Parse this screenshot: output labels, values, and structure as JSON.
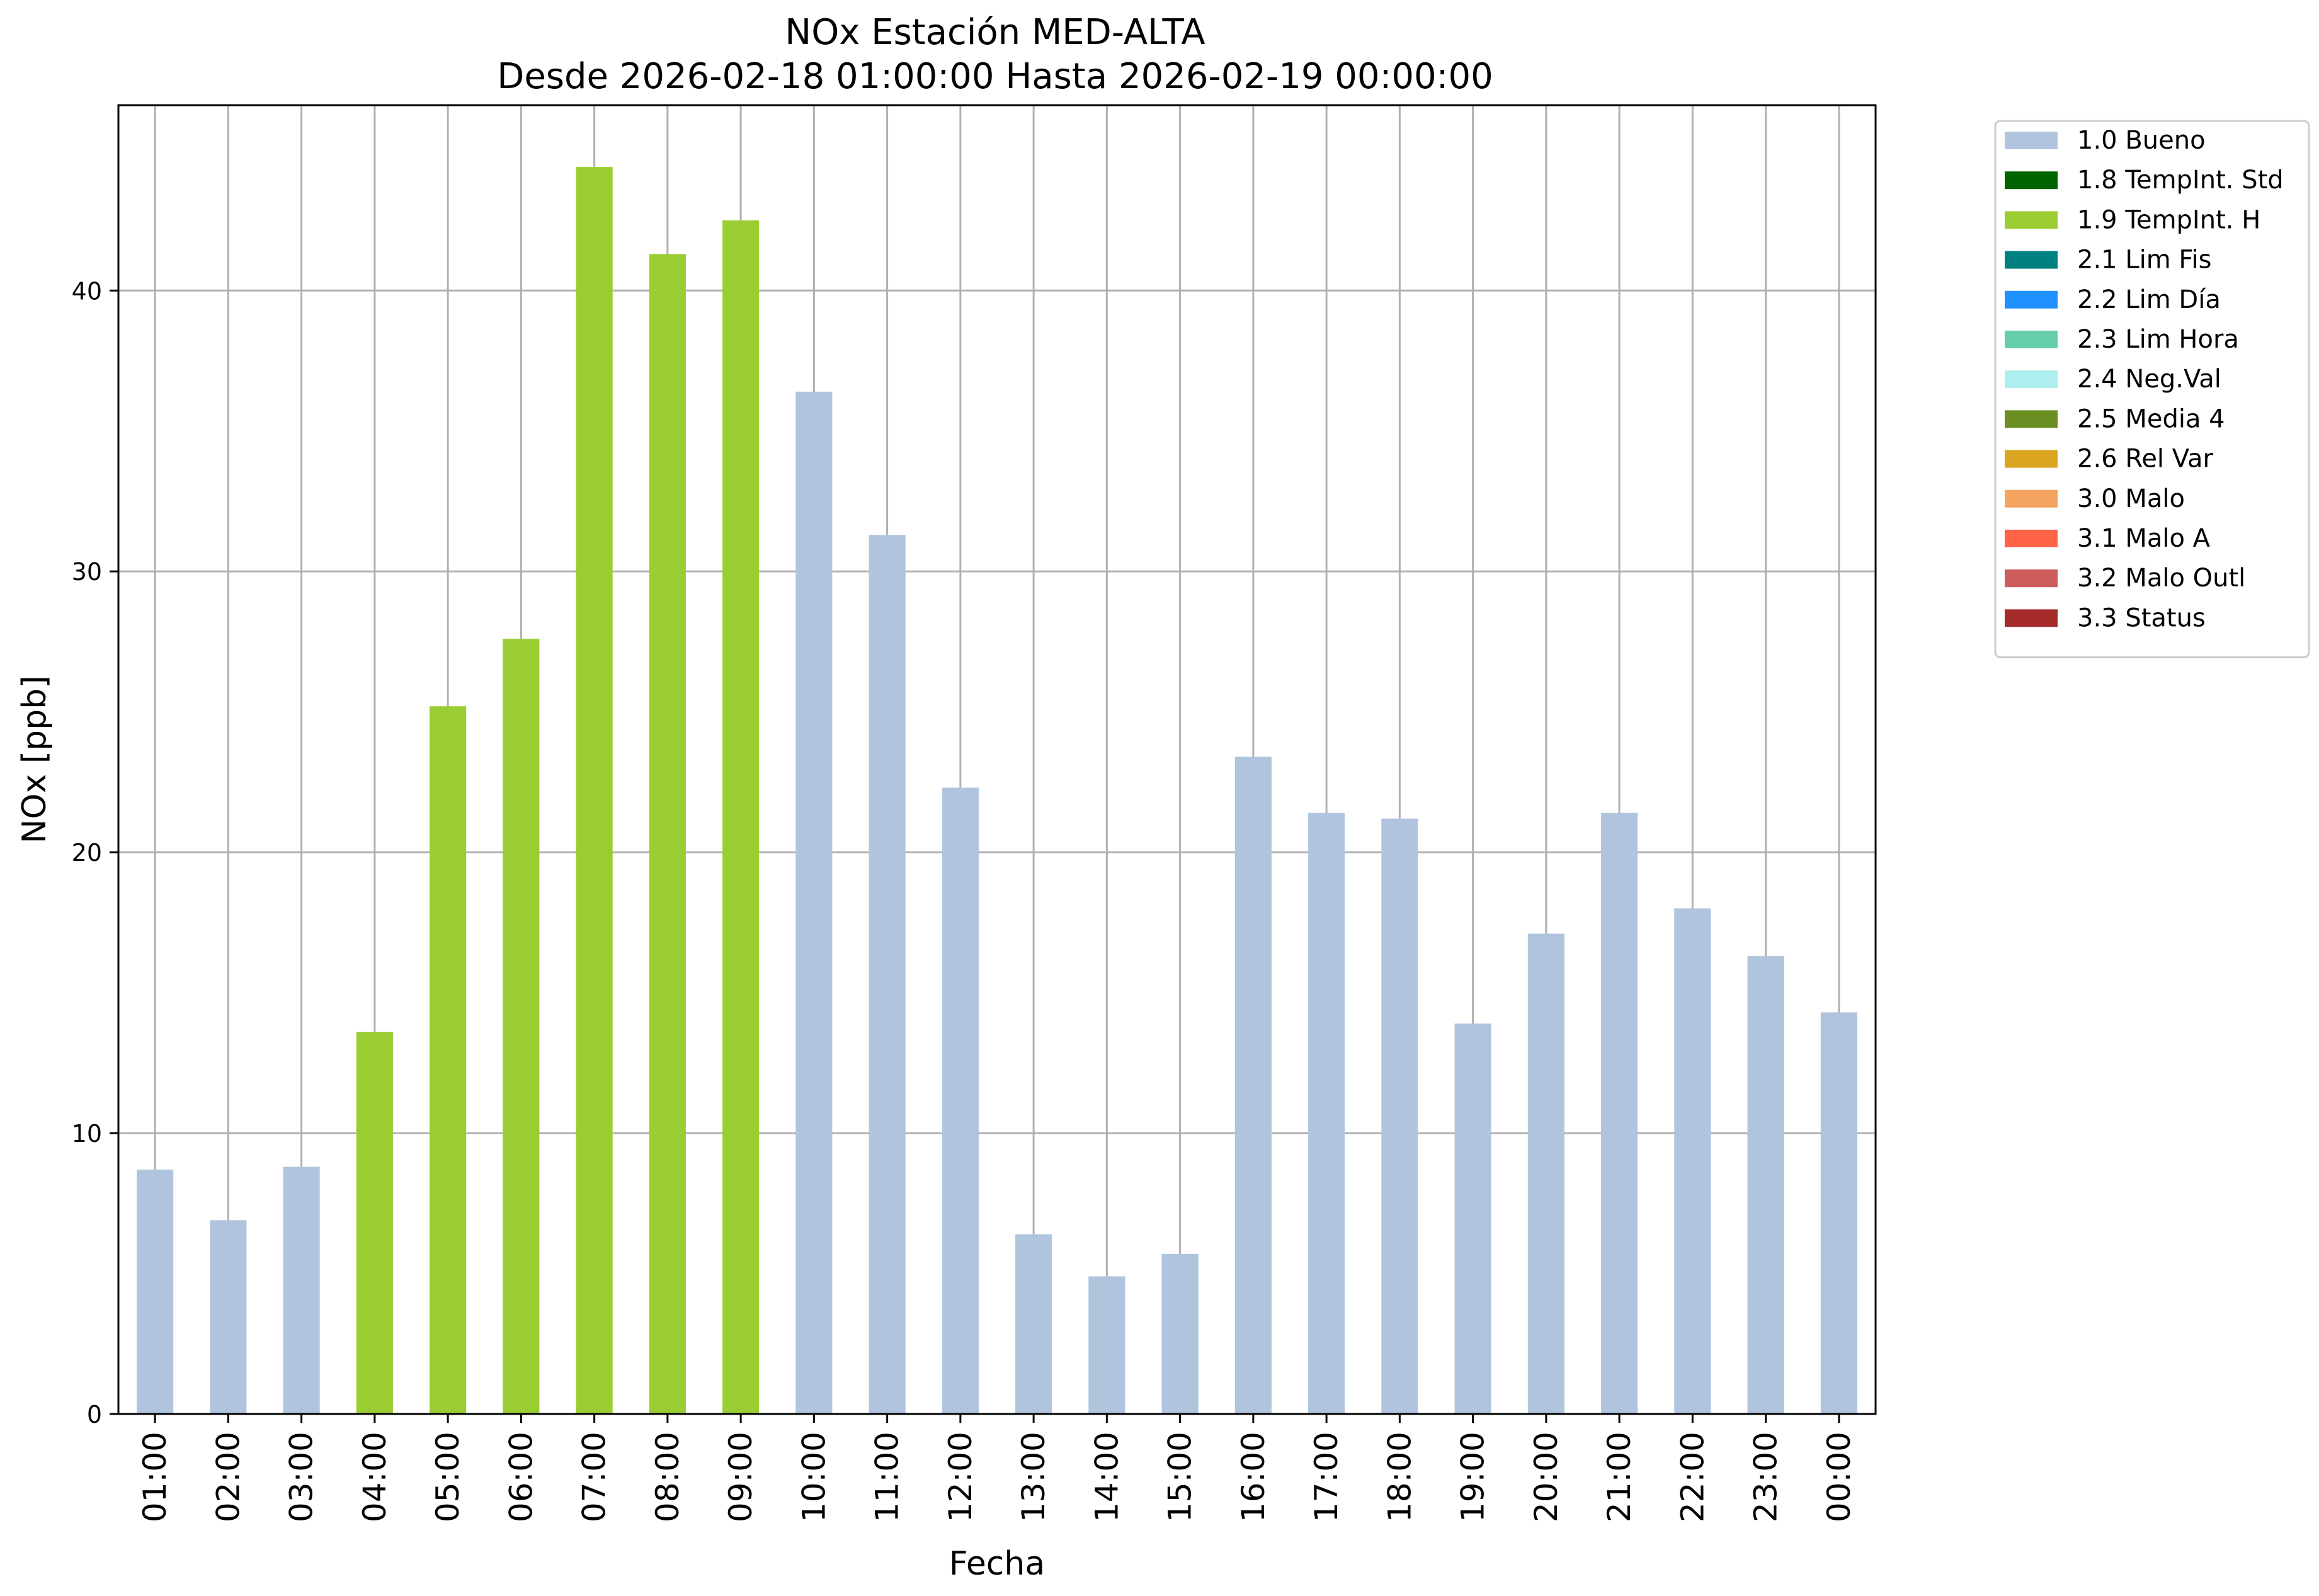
{
  "chart_data": {
    "type": "bar",
    "title": "NOx Estación MED-ALTA",
    "subtitle": "Desde 2026-02-18 01:00:00 Hasta 2026-02-19 00:00:00",
    "xlabel": "Fecha",
    "ylabel": "NOx [ppb]",
    "ylim": [
      0,
      46.6
    ],
    "yticks": [
      0,
      10,
      20,
      30,
      40
    ],
    "grid": true,
    "legend_position": "outside-top-right",
    "categories": [
      "01:00",
      "02:00",
      "03:00",
      "04:00",
      "05:00",
      "06:00",
      "07:00",
      "08:00",
      "09:00",
      "10:00",
      "11:00",
      "12:00",
      "13:00",
      "14:00",
      "15:00",
      "16:00",
      "17:00",
      "18:00",
      "19:00",
      "20:00",
      "21:00",
      "22:00",
      "23:00",
      "00:00"
    ],
    "values": [
      8.7,
      6.9,
      8.8,
      13.6,
      25.2,
      27.6,
      44.4,
      41.3,
      42.5,
      36.4,
      31.3,
      22.3,
      6.4,
      4.9,
      5.7,
      23.4,
      21.4,
      21.2,
      13.9,
      17.1,
      21.4,
      18.0,
      16.3,
      14.3
    ],
    "flags": [
      "1.0 Bueno",
      "1.0 Bueno",
      "1.0 Bueno",
      "1.9 TempInt. H",
      "1.9 TempInt. H",
      "1.9 TempInt. H",
      "1.9 TempInt. H",
      "1.9 TempInt. H",
      "1.9 TempInt. H",
      "1.0 Bueno",
      "1.0 Bueno",
      "1.0 Bueno",
      "1.0 Bueno",
      "1.0 Bueno",
      "1.0 Bueno",
      "1.0 Bueno",
      "1.0 Bueno",
      "1.0 Bueno",
      "1.0 Bueno",
      "1.0 Bueno",
      "1.0 Bueno",
      "1.0 Bueno",
      "1.0 Bueno",
      "1.0 Bueno"
    ],
    "legend": [
      {
        "label": "1.0 Bueno",
        "color": "#b0c4de"
      },
      {
        "label": "1.8 TempInt. Std",
        "color": "#006400"
      },
      {
        "label": "1.9 TempInt. H",
        "color": "#9acd32"
      },
      {
        "label": "2.1 Lim Fis",
        "color": "#008080"
      },
      {
        "label": "2.2 Lim Día",
        "color": "#1e90ff"
      },
      {
        "label": "2.3 Lim Hora",
        "color": "#66cdaa"
      },
      {
        "label": "2.4 Neg.Val",
        "color": "#afeeee"
      },
      {
        "label": "2.5 Media 4",
        "color": "#6b8e23"
      },
      {
        "label": "2.6 Rel Var",
        "color": "#daa520"
      },
      {
        "label": "3.0 Malo",
        "color": "#f4a460"
      },
      {
        "label": "3.1 Malo A",
        "color": "#ff6347"
      },
      {
        "label": "3.2 Malo Outl",
        "color": "#cd5c5c"
      },
      {
        "label": "3.3 Status",
        "color": "#a52a2a"
      }
    ]
  }
}
